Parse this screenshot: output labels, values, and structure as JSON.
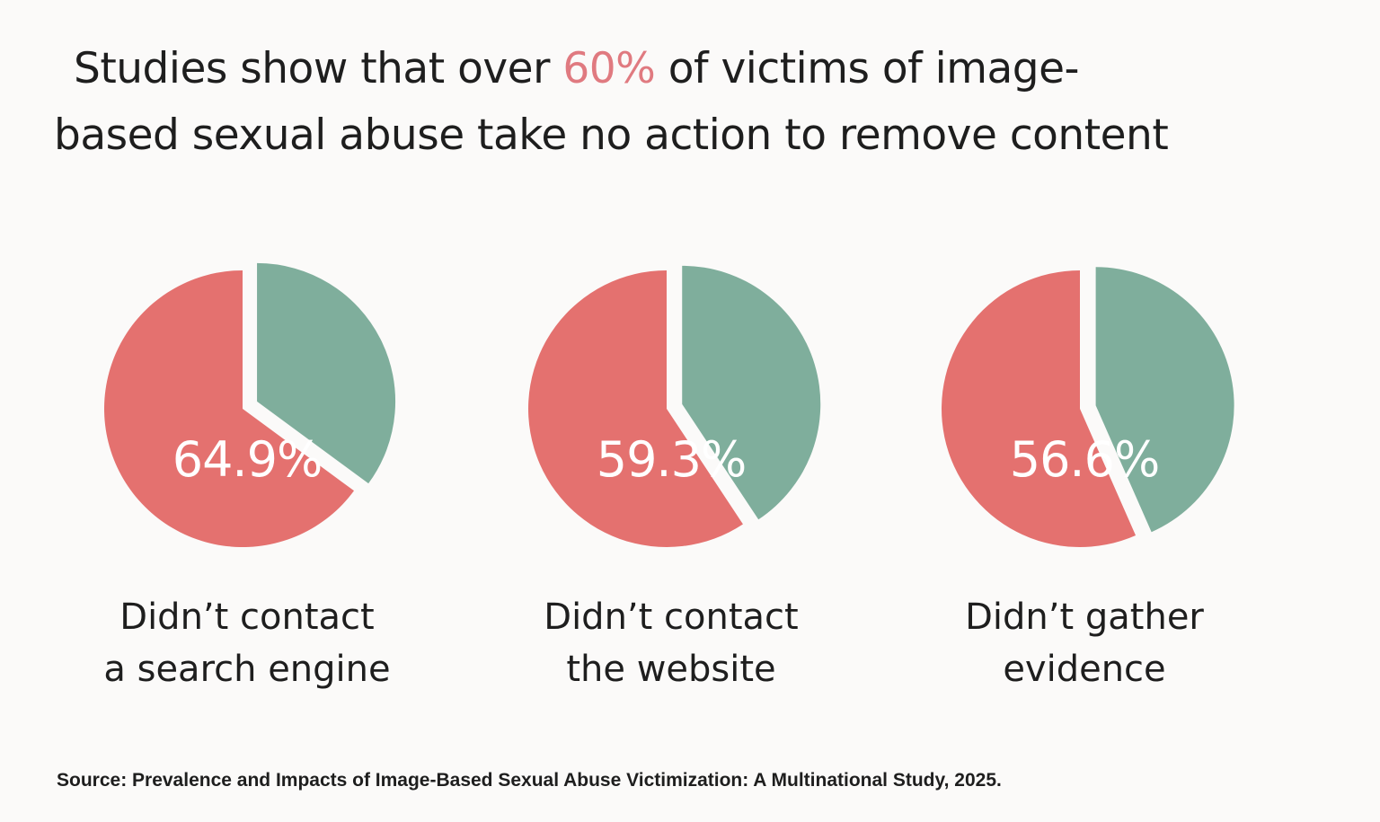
{
  "title": {
    "part1": "Studies show that over ",
    "highlight": "60%",
    "part2": " of victims of image-",
    "line2": "based sexual abuse take no action to remove content"
  },
  "colors": {
    "primary_slice": "#e4716f",
    "secondary_slice": "#7fae9c",
    "highlight": "#e07a80",
    "text": "#1e1e1e"
  },
  "chart_data": [
    {
      "type": "pie",
      "values": [
        64.9,
        35.1
      ],
      "value_label": "64.9%",
      "caption_line1": "Didn’t contact",
      "caption_line2": "a search engine"
    },
    {
      "type": "pie",
      "values": [
        59.3,
        40.7
      ],
      "value_label": "59.3%",
      "caption_line1": "Didn’t contact",
      "caption_line2": "the website"
    },
    {
      "type": "pie",
      "values": [
        56.6,
        43.4
      ],
      "value_label": "56.6%",
      "caption_line1": "Didn’t gather",
      "caption_line2": "evidence"
    }
  ],
  "source": "Source: Prevalence and Impacts of Image-Based Sexual Abuse Victimization: A Multinational Study, 2025."
}
